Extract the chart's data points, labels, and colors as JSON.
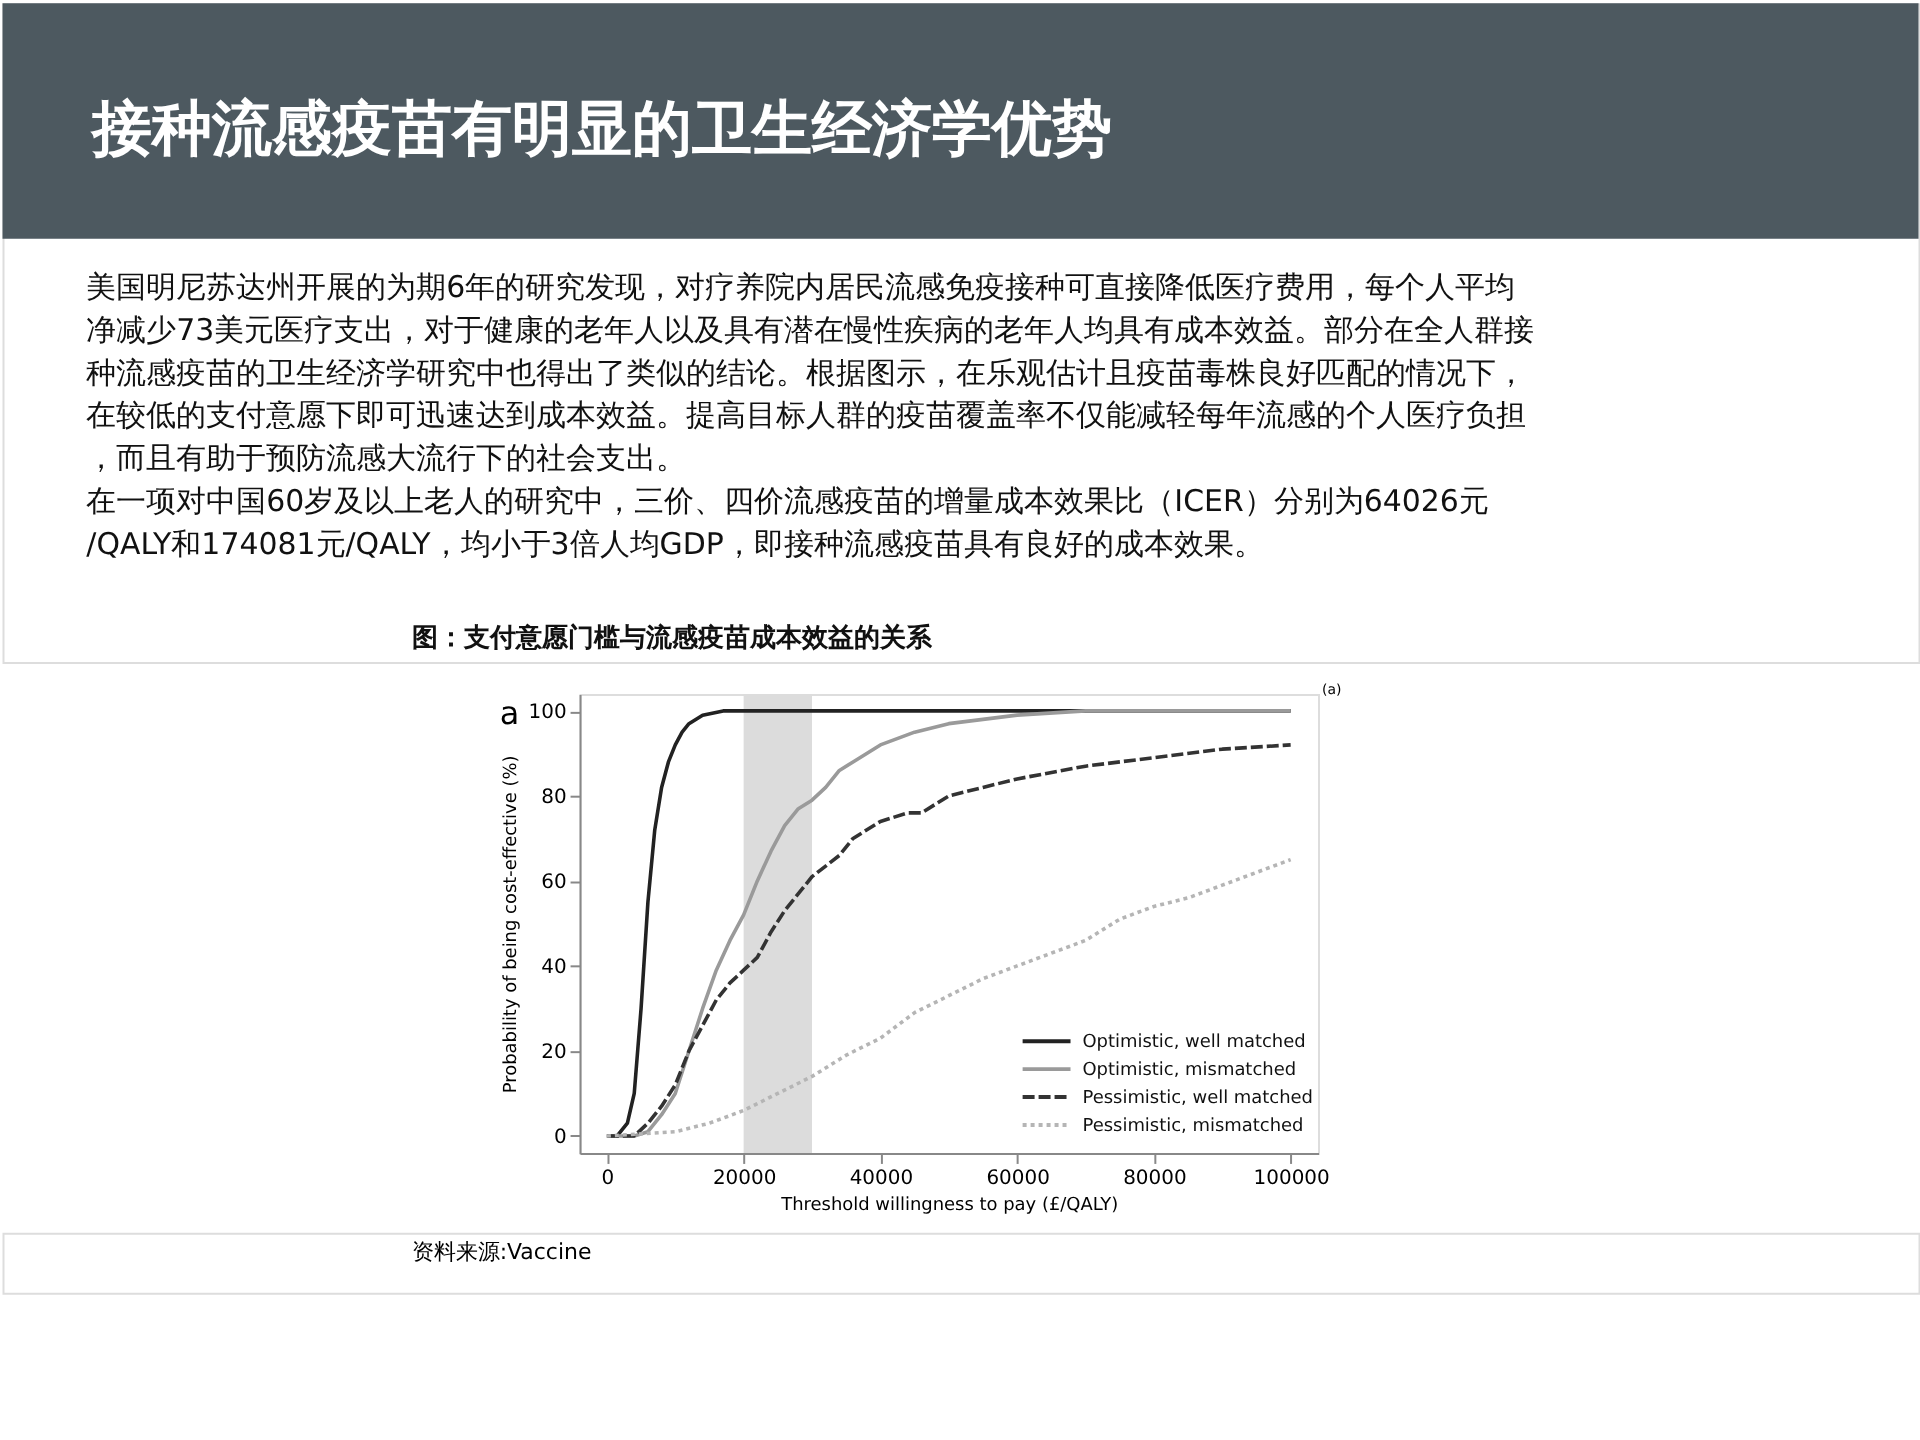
{
  "chart_data": {
    "type": "line",
    "title": "接种流感疫苗有明显的卫生经济学优势",
    "subtitle": "图：支付意愿门槛与流感疫苗成本效益的关系",
    "xlabel": "Threshold willingness to pay (£/QALY)",
    "ylabel": "Probability of being cost-effective (%)",
    "xlim": [
      -4000,
      104000
    ],
    "xticks": [
      0,
      20000,
      40000,
      60000,
      80000,
      100000
    ],
    "ylim": [
      -4,
      104
    ],
    "yticks": [
      0,
      20,
      40,
      60,
      80,
      100
    ],
    "grid": false,
    "legend": "bottom right",
    "bands": [
      {
        "axis": "x",
        "from": 20000,
        "to": 30000,
        "color": "#dcdcdc"
      }
    ],
    "series": [
      {
        "name": "Optimistic, well matched",
        "color": "#222222",
        "line_style": "solid",
        "x": [
          0,
          1500,
          3000,
          4000,
          5000,
          6000,
          7000,
          8000,
          9000,
          10000,
          11000,
          12000,
          14000,
          17000,
          20000,
          100000
        ],
        "values": [
          0,
          0,
          3,
          10,
          30,
          55,
          72,
          82,
          88,
          92,
          95,
          97,
          99,
          100,
          100,
          100
        ]
      },
      {
        "name": "Optimistic, mismatched",
        "color": "#9a9a9a",
        "line_style": "solid",
        "x": [
          0,
          4000,
          6000,
          8000,
          10000,
          12000,
          14000,
          16000,
          18000,
          20000,
          22000,
          24000,
          26000,
          28000,
          30000,
          32000,
          34000,
          36000,
          40000,
          45000,
          50000,
          55000,
          60000,
          70000,
          100000
        ],
        "values": [
          0,
          0,
          1,
          5,
          10,
          20,
          30,
          39,
          46,
          52,
          60,
          67,
          73,
          77,
          79,
          82,
          86,
          88,
          92,
          95,
          97,
          98,
          99,
          100,
          100
        ]
      },
      {
        "name": "Pessimistic, well matched",
        "color": "#333333",
        "line_style": "dashed",
        "x": [
          0,
          4000,
          6000,
          8000,
          10000,
          12000,
          14000,
          16000,
          18000,
          20000,
          22000,
          24000,
          26000,
          28000,
          30000,
          34000,
          36000,
          40000,
          44000,
          46000,
          50000,
          55000,
          60000,
          70000,
          80000,
          90000,
          100000
        ],
        "values": [
          0,
          0,
          3,
          7,
          12,
          20,
          26,
          32,
          36,
          39,
          42,
          48,
          53,
          57,
          61,
          66,
          70,
          74,
          76,
          76,
          80,
          82,
          84,
          87,
          89,
          91,
          92
        ]
      },
      {
        "name": "Pessimistic, mismatched",
        "color": "#b5b5b5",
        "line_style": "dotted",
        "x": [
          0,
          10000,
          15000,
          20000,
          25000,
          30000,
          35000,
          40000,
          45000,
          50000,
          55000,
          60000,
          65000,
          70000,
          75000,
          80000,
          85000,
          90000,
          95000,
          100000
        ],
        "values": [
          0,
          1,
          3,
          6,
          10,
          14,
          19,
          23,
          29,
          33,
          37,
          40,
          43,
          46,
          51,
          54,
          56,
          59,
          62,
          65
        ]
      }
    ],
    "annotations": [
      "美国明尼苏达州开展的为期6年的研究发现，对疗养院内居民流感免疫接种可直接降低医疗费用，每个人平均",
      "净减少73美元医疗支出，对于健康的老年人以及具有潜在慢性疾病的老年人均具有成本效益。部分在全人群接",
      "种流感疫苗的卫生经济学研究中也得出了类似的结论。根据图示，在乐观估计且疫苗毒株良好匹配的情况下，",
      "在较低的支付意愿下即可迅速达到成本效益。提高目标人群的疫苗覆盖率不仅能减轻每年流感的个人医疗负担",
      "，而且有助于预防流感大流行下的社会支出。",
      "在一项对中国60岁及以上老人的研究中，三价、四价流感疫苗的增量成本效果比（ICER）分别为64026元",
      "/QALY和174081元/QALY，均小于3倍人均GDP，即接种流感疫苗具有良好的成本效果。",
      "a",
      "(a)",
      "资料来源:Vaccine"
    ]
  }
}
